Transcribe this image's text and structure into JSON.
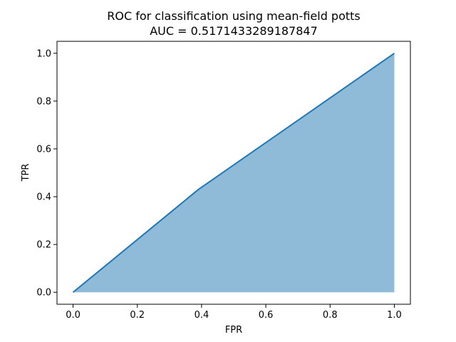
{
  "chart_data": {
    "type": "area",
    "title": "ROC for classification using mean-field potts",
    "subtitle": "AUC = 0.5171433289187847",
    "xlabel": "FPR",
    "ylabel": "TPR",
    "xlim": [
      -0.05,
      1.05
    ],
    "ylim": [
      -0.05,
      1.05
    ],
    "x_ticks": [
      "0.0",
      "0.2",
      "0.4",
      "0.6",
      "0.8",
      "1.0"
    ],
    "y_ticks": [
      "0.0",
      "0.2",
      "0.4",
      "0.6",
      "0.8",
      "1.0"
    ],
    "series": [
      {
        "x": [
          0.0,
          0.39,
          1.0
        ],
        "y": [
          0.0,
          0.43,
          1.0
        ]
      }
    ],
    "grid": false,
    "colors": {
      "line": "#1f77b4",
      "fill": "#8fbbd9"
    }
  }
}
